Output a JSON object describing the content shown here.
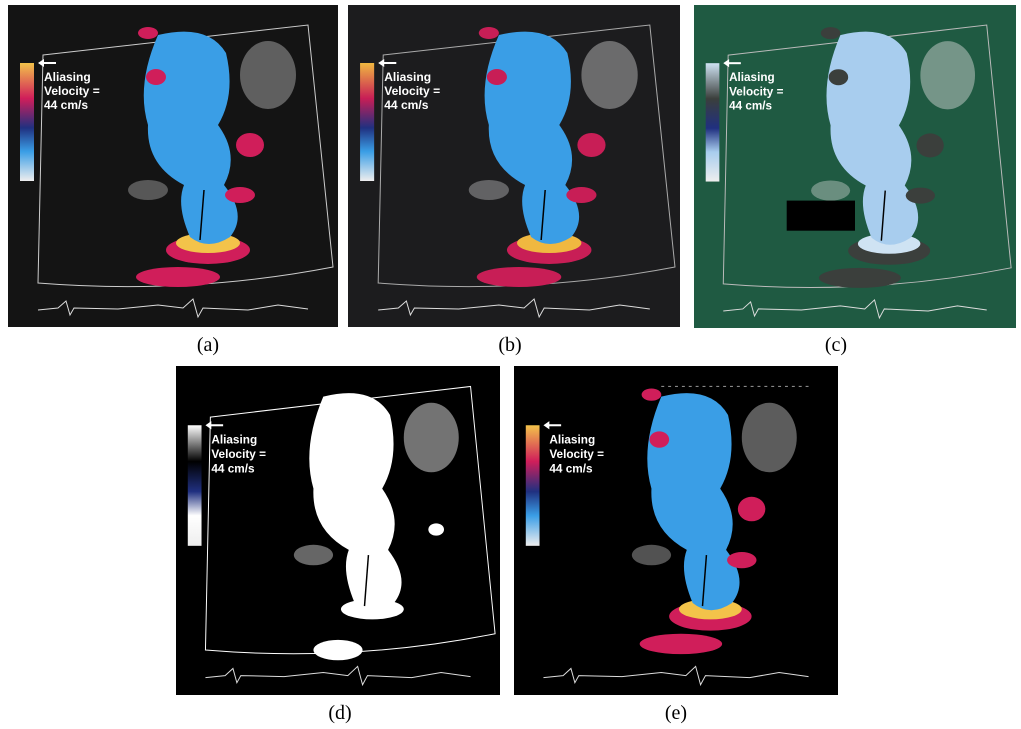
{
  "panels": [
    {
      "label": "(a)",
      "annotation": [
        "Aliasing",
        "Velocity =",
        "44 cm/s"
      ]
    },
    {
      "label": "(b)",
      "annotation": [
        "Aliasing",
        "Velocity =",
        "44 cm/s"
      ]
    },
    {
      "label": "(c)",
      "annotation": [
        "Aliasing",
        "Velocity =",
        "44 cm/s"
      ]
    },
    {
      "label": "(d)",
      "annotation": [
        "Aliasing",
        "Velocity =",
        "44 cm/s"
      ]
    },
    {
      "label": "(e)",
      "annotation": [
        "Aliasing",
        "Velocity =",
        "44 cm/s"
      ]
    }
  ]
}
